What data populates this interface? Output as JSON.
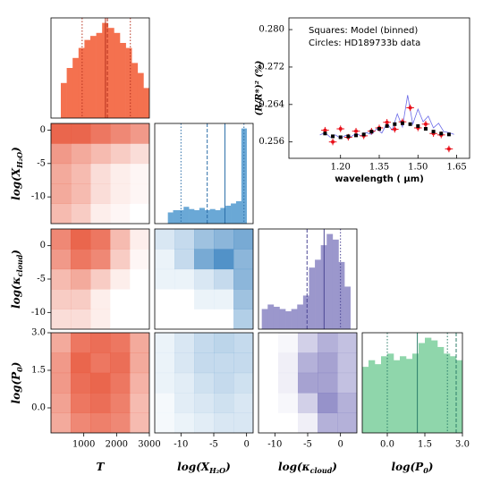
{
  "chart_data": [
    {
      "type": "corner",
      "parameters": [
        {
          "label": [
            "T"
          ],
          "lim": [
            0,
            3000
          ],
          "ticks": [
            1000,
            2000,
            3000
          ]
        },
        {
          "label": [
            "log(X",
            "H₂O",
            ")"
          ],
          "lim": [
            -14,
            1
          ],
          "ticks": [
            -10,
            -5,
            0
          ]
        },
        {
          "label": [
            "log(κ",
            "cloud",
            ")"
          ],
          "lim": [
            -12.5,
            2.5
          ],
          "ticks": [
            -10,
            -5,
            0
          ]
        },
        {
          "label": [
            "log(P",
            "0",
            ")"
          ],
          "lim": [
            -1,
            3
          ],
          "ticks": [
            {
              "value": 0,
              "label": "0.0"
            },
            {
              "value": 1.5,
              "label": "1.5"
            },
            {
              "value": 3,
              "label": "3.0"
            }
          ]
        }
      ],
      "histograms": [
        {
          "color": "#f4714f",
          "line_color": "#b8331f",
          "bins": [
            300,
            480,
            660,
            840,
            1020,
            1200,
            1380,
            1560,
            1740,
            1920,
            2100,
            2280,
            2460,
            2640,
            2820,
            3000
          ],
          "counts": [
            0.35,
            0.5,
            0.6,
            0.7,
            0.78,
            0.82,
            0.85,
            0.95,
            0.9,
            0.85,
            0.75,
            0.7,
            0.55,
            0.45,
            0.3
          ],
          "lines": [
            {
              "value": 950,
              "style": "dotted"
            },
            {
              "value": 1660,
              "style": "solid"
            },
            {
              "value": 1720,
              "style": "dashed"
            },
            {
              "value": 2420,
              "style": "dotted"
            }
          ]
        },
        {
          "color": "#6aa8d6",
          "line_color": "#2b6ea8",
          "bins": [
            -12,
            -11.2,
            -10.4,
            -9.6,
            -8.8,
            -8,
            -7.2,
            -6.4,
            -5.6,
            -4.8,
            -4,
            -3.2,
            -2.4,
            -1.6,
            -0.8,
            0
          ],
          "counts": [
            0.1,
            0.12,
            0.12,
            0.15,
            0.13,
            0.12,
            0.14,
            0.12,
            0.13,
            0.12,
            0.14,
            0.16,
            0.18,
            0.2,
            0.85
          ],
          "lines": [
            {
              "value": -10,
              "style": "dotted"
            },
            {
              "value": -6,
              "style": "dashed"
            },
            {
              "value": -3.3,
              "style": "solid"
            },
            {
              "value": -0.4,
              "style": "dotted"
            }
          ]
        },
        {
          "color": "#9b97cc",
          "line_color": "#4c4795",
          "bins": [
            -12,
            -11.1,
            -10.2,
            -9.3,
            -8.4,
            -7.5,
            -6.6,
            -5.7,
            -4.8,
            -3.9,
            -3,
            -2.1,
            -1.2,
            -0.3,
            0.6,
            1.5
          ],
          "counts": [
            0.18,
            0.22,
            0.2,
            0.18,
            0.16,
            0.18,
            0.22,
            0.3,
            0.55,
            0.62,
            0.75,
            0.85,
            0.8,
            0.6,
            0.38
          ],
          "lines": [
            {
              "value": -5.1,
              "style": "dashed"
            },
            {
              "value": -2.5,
              "style": "solid"
            },
            {
              "value": 0,
              "style": "dotted"
            }
          ]
        },
        {
          "color": "#8fd6ab",
          "line_color": "#2c7d6a",
          "bins": [
            -1,
            -0.75,
            -0.5,
            -0.25,
            0,
            0.25,
            0.5,
            0.75,
            1,
            1.25,
            1.5,
            1.75,
            2,
            2.25,
            2.5,
            2.75,
            3
          ],
          "counts": [
            0.5,
            0.55,
            0.52,
            0.58,
            0.6,
            0.55,
            0.58,
            0.56,
            0.6,
            0.68,
            0.72,
            0.7,
            0.65,
            0.6,
            0.58,
            0.55
          ],
          "lines": [
            {
              "value": 0,
              "style": "dotted"
            },
            {
              "value": 1.2,
              "style": "solid"
            },
            {
              "value": 2.4,
              "style": "dotted"
            },
            {
              "value": 2.75,
              "style": "dashed"
            }
          ]
        }
      ],
      "densities": [
        {
          "color": "#e8553a",
          "grid": [
            [
              0.9,
              0.9,
              0.8,
              0.7,
              0.6
            ],
            [
              0.6,
              0.5,
              0.4,
              0.3,
              0.2
            ],
            [
              0.5,
              0.4,
              0.2,
              0.1,
              0.05
            ],
            [
              0.5,
              0.4,
              0.2,
              0.1,
              0.05
            ],
            [
              0.4,
              0.3,
              0.1,
              0.05,
              0
            ]
          ]
        },
        {
          "color": "#e8553a",
          "grid": [
            [
              0.7,
              0.9,
              0.8,
              0.4,
              0.1
            ],
            [
              0.6,
              0.8,
              0.7,
              0.3,
              0.05
            ],
            [
              0.4,
              0.5,
              0.3,
              0.1,
              0
            ],
            [
              0.3,
              0.3,
              0.1,
              0,
              0
            ],
            [
              0.2,
              0.2,
              0.1,
              0,
              0
            ]
          ]
        },
        {
          "color": "#3f86c2",
          "grid": [
            [
              0.2,
              0.3,
              0.5,
              0.6,
              0.7
            ],
            [
              0.1,
              0.3,
              0.7,
              0.9,
              0.6
            ],
            [
              0.1,
              0.1,
              0.2,
              0.3,
              0.6
            ],
            [
              0,
              0,
              0.1,
              0.1,
              0.5
            ],
            [
              0,
              0,
              0,
              0,
              0.4
            ]
          ]
        },
        {
          "color": "#e8553a",
          "grid": [
            [
              0.5,
              0.8,
              0.85,
              0.8,
              0.5
            ],
            [
              0.6,
              0.9,
              0.8,
              0.85,
              0.5
            ],
            [
              0.6,
              0.85,
              0.9,
              0.8,
              0.45
            ],
            [
              0.55,
              0.8,
              0.85,
              0.75,
              0.4
            ],
            [
              0.5,
              0.7,
              0.75,
              0.7,
              0.4
            ]
          ]
        },
        {
          "color": "#3f86c2",
          "grid": [
            [
              0.1,
              0.2,
              0.3,
              0.35,
              0.3
            ],
            [
              0.1,
              0.2,
              0.3,
              0.3,
              0.3
            ],
            [
              0.1,
              0.15,
              0.25,
              0.3,
              0.25
            ],
            [
              0.05,
              0.15,
              0.2,
              0.25,
              0.2
            ],
            [
              0.05,
              0.1,
              0.15,
              0.2,
              0.2
            ]
          ]
        },
        {
          "color": "#6a64b3",
          "grid": [
            [
              0,
              0.05,
              0.3,
              0.5,
              0.4
            ],
            [
              0,
              0.1,
              0.5,
              0.6,
              0.4
            ],
            [
              0,
              0.1,
              0.6,
              0.6,
              0.4
            ],
            [
              0,
              0.05,
              0.3,
              0.7,
              0.5
            ],
            [
              0,
              0,
              0.1,
              0.5,
              0.5
            ]
          ]
        }
      ]
    },
    {
      "type": "errorbar",
      "xlabel": "wavelength ( μm)",
      "ylabel": "(R/R*)² (%)",
      "xlim": [
        1.0,
        1.7
      ],
      "ylim": [
        0.2525,
        0.2825
      ],
      "xticks": [
        {
          "value": 1.2,
          "label": "1.20"
        },
        {
          "value": 1.35,
          "label": "1.35"
        },
        {
          "value": 1.5,
          "label": "1.50"
        },
        {
          "value": 1.65,
          "label": "1.65"
        }
      ],
      "yticks": [
        0.256,
        0.264,
        0.272,
        {
          "value": 0.28,
          "label": "0.280"
        }
      ],
      "series": [
        {
          "name": "Squares: Model (binned)",
          "color": "#000000",
          "x": [
            1.14,
            1.17,
            1.2,
            1.23,
            1.26,
            1.29,
            1.32,
            1.35,
            1.38,
            1.41,
            1.44,
            1.47,
            1.5,
            1.53,
            1.56,
            1.59,
            1.62
          ],
          "values": [
            0.2578,
            0.2572,
            0.257,
            0.2572,
            0.2574,
            0.2576,
            0.2582,
            0.2588,
            0.2594,
            0.2598,
            0.26,
            0.2598,
            0.2594,
            0.2588,
            0.2582,
            0.2578,
            0.2576
          ]
        },
        {
          "name": "Circles: HD189733b data",
          "color": "#e8101a",
          "x": [
            1.14,
            1.17,
            1.2,
            1.23,
            1.26,
            1.29,
            1.32,
            1.35,
            1.38,
            1.41,
            1.44,
            1.47,
            1.5,
            1.53,
            1.56,
            1.59,
            1.62
          ],
          "values": [
            0.2585,
            0.256,
            0.2588,
            0.257,
            0.2583,
            0.2573,
            0.2583,
            0.259,
            0.2602,
            0.2587,
            0.2603,
            0.2633,
            0.259,
            0.2598,
            0.2578,
            0.2575,
            0.2545
          ],
          "yerr": [
            0.0007,
            0.0007,
            0.0007,
            0.0007,
            0.0007,
            0.0007,
            0.0007,
            0.0007,
            0.0007,
            0.0007,
            0.0007,
            0.0007,
            0.0007,
            0.0007,
            0.0007,
            0.0007,
            0.0007
          ],
          "xerr": [
            0.015,
            0.015,
            0.015,
            0.015,
            0.015,
            0.015,
            0.015,
            0.015,
            0.015,
            0.015,
            0.015,
            0.015,
            0.015,
            0.015,
            0.015,
            0.015,
            0.015
          ]
        },
        {
          "color": "#3a3ae0",
          "x": [
            1.12,
            1.14,
            1.16,
            1.18,
            1.2,
            1.22,
            1.24,
            1.26,
            1.28,
            1.3,
            1.32,
            1.34,
            1.36,
            1.38,
            1.4,
            1.42,
            1.44,
            1.46,
            1.48,
            1.5,
            1.52,
            1.54,
            1.56,
            1.58,
            1.6,
            1.62,
            1.64
          ],
          "values": [
            0.2575,
            0.258,
            0.257,
            0.2575,
            0.2568,
            0.2574,
            0.2571,
            0.2578,
            0.2573,
            0.258,
            0.2576,
            0.2588,
            0.2579,
            0.26,
            0.2585,
            0.262,
            0.2592,
            0.266,
            0.2598,
            0.263,
            0.2603,
            0.2615,
            0.259,
            0.26,
            0.2582,
            0.258,
            0.2576
          ]
        }
      ]
    }
  ]
}
